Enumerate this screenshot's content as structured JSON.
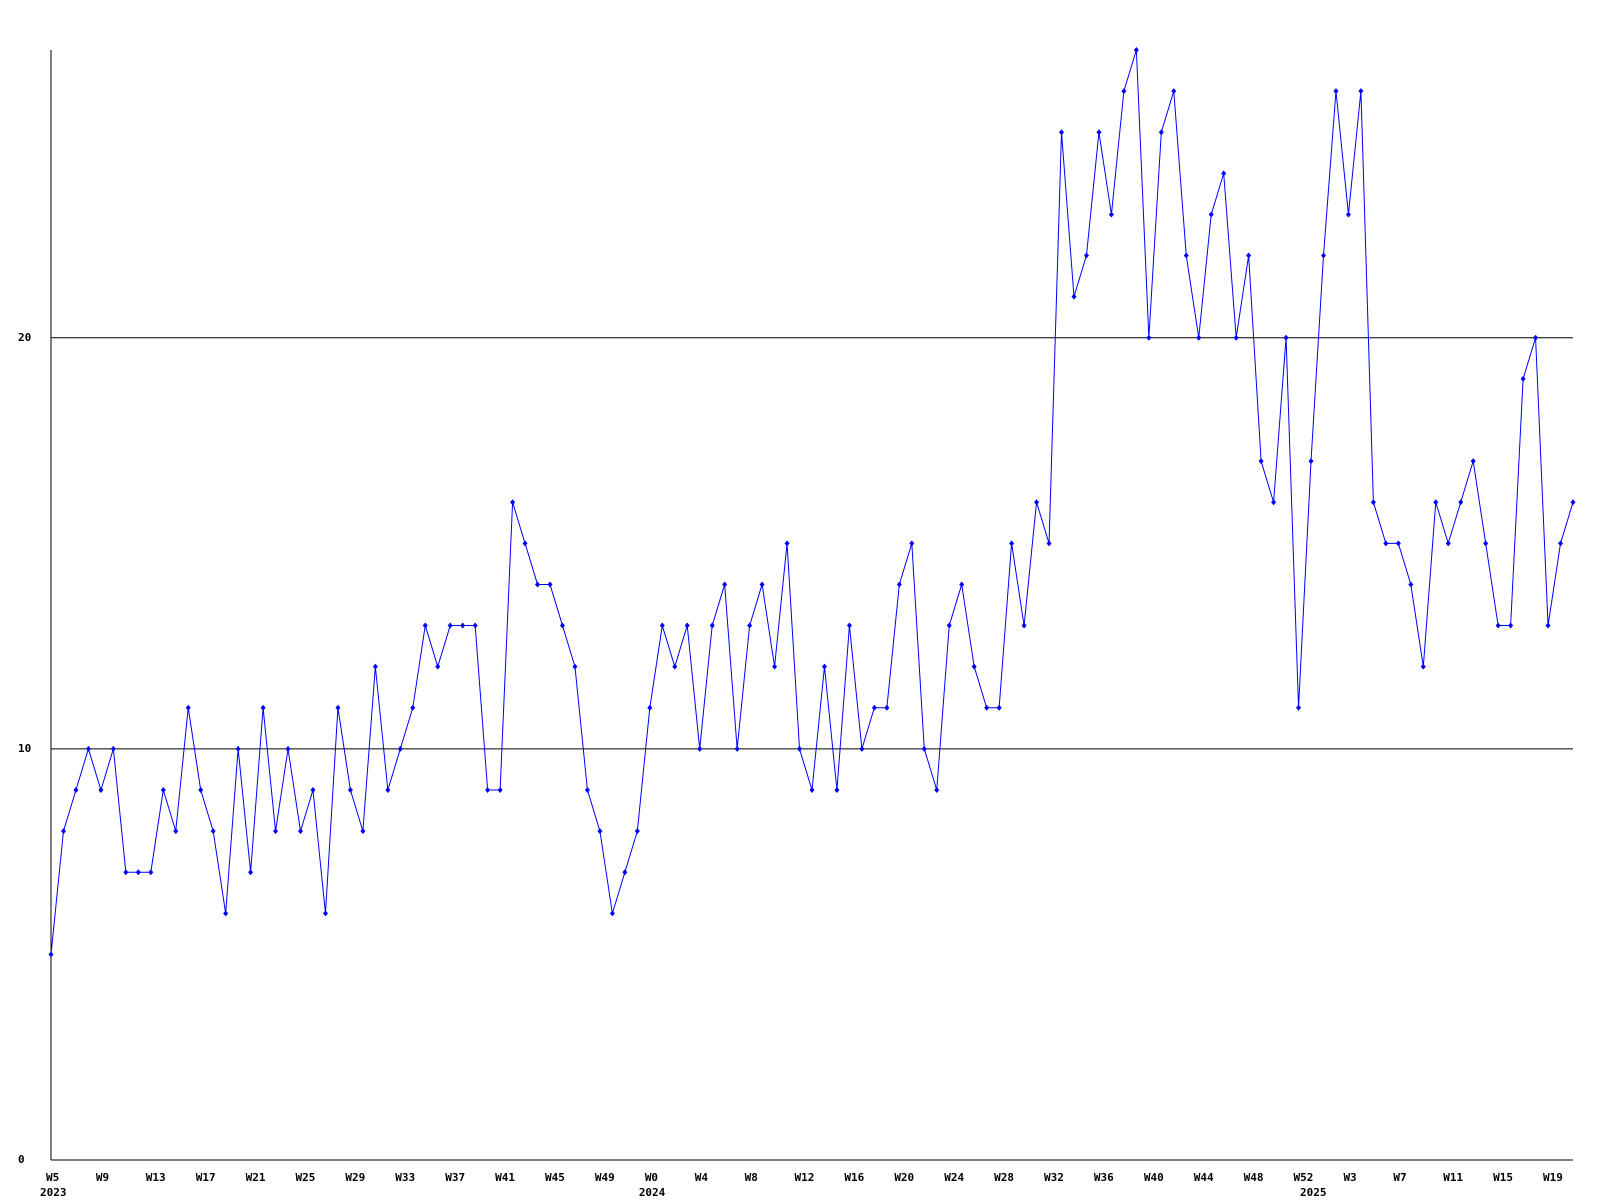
{
  "chart_data": {
    "type": "line",
    "categories": [
      "W5",
      null,
      null,
      null,
      "W9",
      null,
      null,
      null,
      "W13",
      null,
      null,
      null,
      "W17",
      null,
      null,
      null,
      "W21",
      null,
      null,
      null,
      "W25",
      null,
      null,
      null,
      "W29",
      null,
      null,
      null,
      "W33",
      null,
      null,
      null,
      "W37",
      null,
      null,
      null,
      "W41",
      null,
      null,
      null,
      "W45",
      null,
      null,
      null,
      "W49",
      null,
      null,
      null,
      "W0",
      null,
      null,
      null,
      "W4",
      null,
      null,
      null,
      "W8",
      null,
      null,
      null,
      "W12",
      null,
      null,
      null,
      "W16",
      null,
      null,
      null,
      "W20",
      null,
      null,
      null,
      "W24",
      null,
      null,
      null,
      "W28",
      null,
      null,
      null,
      "W32",
      null,
      null,
      null,
      "W36",
      null,
      null,
      null,
      "W40",
      null,
      null,
      null,
      "W44",
      null,
      null,
      null,
      "W48",
      null,
      null,
      null,
      "W52",
      null,
      null,
      null,
      "W3",
      null,
      null,
      null,
      "W7",
      null,
      null,
      null,
      "W11",
      null,
      null,
      null,
      "W15",
      null,
      null,
      null,
      "W19",
      null,
      null
    ],
    "year_labels": [
      {
        "at": 0,
        "label": "2023"
      },
      {
        "at": 48,
        "label": "2024"
      },
      {
        "at": 101,
        "label": "2025"
      }
    ],
    "series": [
      {
        "color": "#0000ff",
        "values": [
          5,
          8,
          9,
          10,
          9,
          10,
          7,
          7,
          7,
          9,
          8,
          11,
          9,
          8,
          6,
          10,
          7,
          11,
          8,
          10,
          8,
          9,
          6,
          11,
          9,
          8,
          12,
          9,
          10,
          11,
          13,
          12,
          13,
          13,
          13,
          9,
          9,
          16,
          15,
          14,
          14,
          13,
          12,
          9,
          8,
          6,
          7,
          8,
          11,
          13,
          12,
          13,
          10,
          13,
          14,
          10,
          13,
          14,
          12,
          15,
          10,
          9,
          12,
          9,
          13,
          10,
          11,
          11,
          14,
          15,
          10,
          9,
          13,
          14,
          12,
          11,
          11,
          15,
          13,
          16,
          15,
          25,
          21,
          22,
          25,
          23,
          26,
          27,
          20,
          25,
          26,
          22,
          20,
          23,
          24,
          20,
          22,
          17,
          16,
          20,
          11,
          17,
          22,
          26,
          23,
          26,
          16,
          15,
          15,
          14,
          12,
          16,
          15,
          16,
          17,
          15,
          13,
          13,
          19,
          20,
          13,
          15,
          16
        ]
      }
    ],
    "ylim": [
      0,
      27
    ],
    "yticks": [
      0,
      10,
      20
    ],
    "grid": true
  }
}
